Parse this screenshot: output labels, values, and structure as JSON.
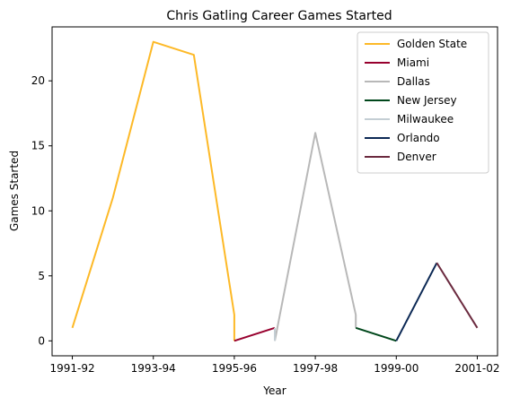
{
  "chart_data": {
    "type": "line",
    "title": "Chris Gatling Career Games Started",
    "xlabel": "Year",
    "ylabel": "Games Started",
    "x_tick_labels": [
      {
        "x": 0,
        "label": "1991-92"
      },
      {
        "x": 2,
        "label": "1993-94"
      },
      {
        "x": 4,
        "label": "1995-96"
      },
      {
        "x": 6,
        "label": "1997-98"
      },
      {
        "x": 8,
        "label": "1999-00"
      },
      {
        "x": 10,
        "label": "2001-02"
      }
    ],
    "xlim": [
      -0.5,
      10.5
    ],
    "ylim": [
      -1.15,
      24.15
    ],
    "yticks": [
      0,
      5,
      10,
      15,
      20
    ],
    "grid": false,
    "legend_position": "upper right",
    "series": [
      {
        "name": "Golden State",
        "color": "#FDB927",
        "points": [
          [
            0,
            1
          ],
          [
            1,
            11
          ],
          [
            2,
            23
          ],
          [
            3,
            22
          ],
          [
            4,
            2
          ],
          [
            4,
            0
          ]
        ]
      },
      {
        "name": "Miami",
        "color": "#98002E",
        "points": [
          [
            4,
            0
          ],
          [
            5,
            1
          ]
        ]
      },
      {
        "name": "Dallas",
        "color": "#B8B8B8",
        "points": [
          [
            5,
            0
          ],
          [
            6,
            16
          ],
          [
            7,
            2
          ],
          [
            7,
            1
          ]
        ]
      },
      {
        "name": "New Jersey",
        "color": "#00471B",
        "points": [
          [
            7,
            1
          ],
          [
            8,
            0
          ]
        ]
      },
      {
        "name": "Milwaukee",
        "color": "#C4CED4",
        "points": [
          [
            5,
            0
          ],
          [
            5,
            1
          ]
        ]
      },
      {
        "name": "Orlando",
        "color": "#0B2854",
        "points": [
          [
            8,
            0
          ],
          [
            9,
            6
          ]
        ]
      },
      {
        "name": "Denver",
        "color": "#6B2A3F",
        "points": [
          [
            9,
            6
          ],
          [
            10,
            1
          ]
        ]
      }
    ]
  }
}
